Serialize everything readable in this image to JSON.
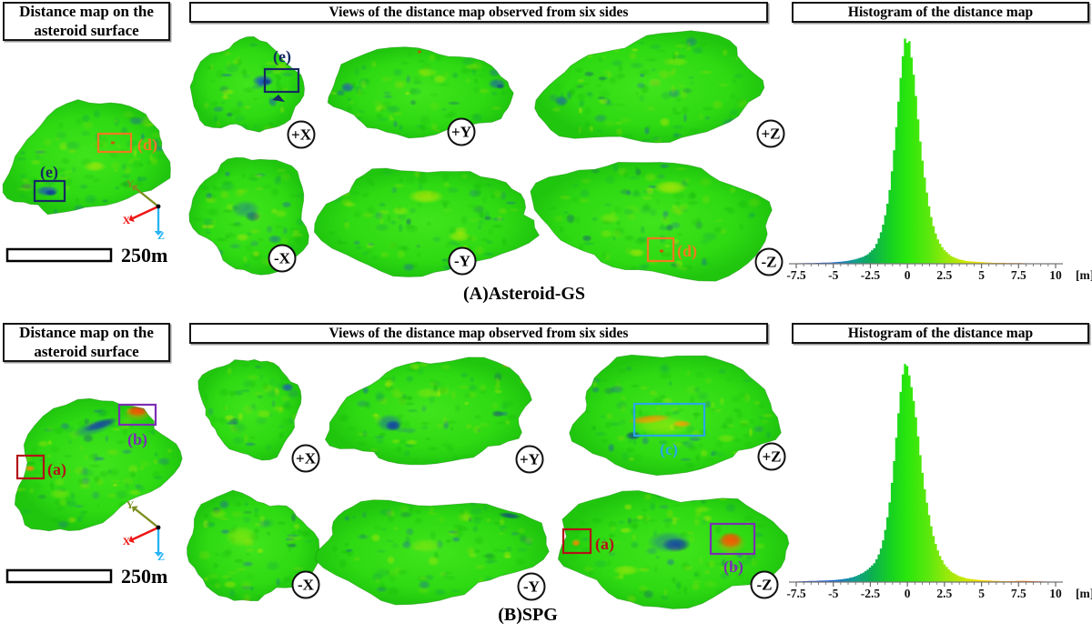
{
  "figure": {
    "panels": [
      {
        "id": "A",
        "caption": "(A)Asteroid-GS",
        "headers": {
          "left": "Distance map on the asteroid surface",
          "center": "Views of the distance map observed from six sides",
          "right": "Histogram of the distance map"
        },
        "scale_bar_label": "250m",
        "axes_triad": [
          {
            "label": "Y",
            "color": "#7d8d21"
          },
          {
            "label": "X",
            "color": "#ee1412"
          },
          {
            "label": "Z",
            "color": "#2ab4f4"
          }
        ],
        "view_labels": [
          "+X",
          "+Y",
          "+Z",
          "-X",
          "-Y",
          "-Z"
        ],
        "annotations": [
          {
            "label": "(d)",
            "color": "#f4791f",
            "target": "main"
          },
          {
            "label": "(e)",
            "color": "#152a63",
            "target": "main"
          },
          {
            "label": "(e)",
            "color": "#152a63",
            "target": "+X"
          },
          {
            "label": "(d)",
            "color": "#f4791f",
            "target": "-Z"
          }
        ]
      },
      {
        "id": "B",
        "caption": "(B)SPG",
        "headers": {
          "left": "Distance map on the asteroid surface",
          "center": "Views of the distance map observed from six sides",
          "right": "Histogram of the distance map"
        },
        "scale_bar_label": "250m",
        "axes_triad": [
          {
            "label": "Y",
            "color": "#7d8d21"
          },
          {
            "label": "X",
            "color": "#ee1412"
          },
          {
            "label": "Z",
            "color": "#2ab4f4"
          }
        ],
        "view_labels": [
          "+X",
          "+Y",
          "+Z",
          "-X",
          "-Y",
          "-Z"
        ],
        "annotations": [
          {
            "label": "(a)",
            "color": "#b31217",
            "target": "main"
          },
          {
            "label": "(b)",
            "color": "#7b2fb4",
            "target": "main"
          },
          {
            "label": "(c)",
            "color": "#2aa7ea",
            "target": "+Z"
          },
          {
            "label": "(a)",
            "color": "#b31217",
            "target": "-Z"
          },
          {
            "label": "(b)",
            "color": "#7b2fb4",
            "target": "-Z"
          }
        ]
      }
    ],
    "colormap_stops": [
      [
        -7.5,
        "#2030cc"
      ],
      [
        -5,
        "#2068d8"
      ],
      [
        -3.5,
        "#13a08c"
      ],
      [
        -2.5,
        "#0cad55"
      ],
      [
        -1,
        "#18d41e"
      ],
      [
        0,
        "#2ae70c"
      ],
      [
        1.5,
        "#5fe80d"
      ],
      [
        2.5,
        "#8fe90c"
      ],
      [
        4,
        "#cfe804"
      ],
      [
        5,
        "#f4dc00"
      ],
      [
        6.5,
        "#ffae00"
      ],
      [
        8,
        "#ff6a00"
      ],
      [
        10,
        "#ff2400"
      ]
    ],
    "surface_base_color": "#2eda12"
  },
  "chart_data": [
    {
      "type": "bar",
      "title": "Histogram of the distance map",
      "xlabel": "[m]",
      "ylabel": "",
      "xlim": [
        -7.5,
        10
      ],
      "x_ticks": [
        "-7.5",
        "-5",
        "-2.5",
        "0",
        "2.5",
        "5",
        "7.5",
        "10"
      ],
      "unit": "[m]",
      "grid": false,
      "legend": "none",
      "peak_x": 0,
      "points": [
        [
          -7.5,
          0.002
        ],
        [
          -6.5,
          0.003
        ],
        [
          -6,
          0.004
        ],
        [
          -5.5,
          0.005
        ],
        [
          -5,
          0.006
        ],
        [
          -4.5,
          0.009
        ],
        [
          -4,
          0.013
        ],
        [
          -3.5,
          0.02
        ],
        [
          -3,
          0.03
        ],
        [
          -2.7,
          0.04
        ],
        [
          -2.5,
          0.052
        ],
        [
          -2.2,
          0.07
        ],
        [
          -2,
          0.1
        ],
        [
          -1.8,
          0.135
        ],
        [
          -1.6,
          0.18
        ],
        [
          -1.4,
          0.24
        ],
        [
          -1.2,
          0.32
        ],
        [
          -1,
          0.43
        ],
        [
          -0.8,
          0.56
        ],
        [
          -0.6,
          0.71
        ],
        [
          -0.4,
          0.85
        ],
        [
          -0.25,
          0.94
        ],
        [
          -0.12,
          1.0
        ],
        [
          -0.02,
          0.96
        ],
        [
          0.08,
          1.0
        ],
        [
          0.2,
          0.94
        ],
        [
          0.35,
          0.87
        ],
        [
          0.5,
          0.79
        ],
        [
          0.7,
          0.65
        ],
        [
          0.9,
          0.52
        ],
        [
          1.1,
          0.41
        ],
        [
          1.3,
          0.32
        ],
        [
          1.5,
          0.24
        ],
        [
          1.7,
          0.18
        ],
        [
          1.9,
          0.135
        ],
        [
          2.1,
          0.1
        ],
        [
          2.3,
          0.078
        ],
        [
          2.5,
          0.06
        ],
        [
          2.8,
          0.042
        ],
        [
          3,
          0.032
        ],
        [
          3.5,
          0.019
        ],
        [
          4,
          0.012
        ],
        [
          4.5,
          0.009
        ],
        [
          5,
          0.007
        ],
        [
          5.5,
          0.005
        ],
        [
          6,
          0.004
        ],
        [
          6.5,
          0.004
        ],
        [
          7,
          0.003
        ],
        [
          7.5,
          0.003
        ],
        [
          8,
          0.002
        ],
        [
          9,
          0.002
        ],
        [
          10,
          0.001
        ]
      ]
    },
    {
      "type": "bar",
      "title": "Histogram of the distance map",
      "xlabel": "[m]",
      "ylabel": "",
      "xlim": [
        -7.5,
        10
      ],
      "x_ticks": [
        "-7.5",
        "-5",
        "-2.5",
        "0",
        "2.5",
        "5",
        "7.5",
        "10"
      ],
      "unit": "[m]",
      "grid": false,
      "legend": "none",
      "peak_x": -0.12,
      "points": [
        [
          -7.5,
          0.002
        ],
        [
          -7,
          0.004
        ],
        [
          -6.5,
          0.005
        ],
        [
          -6,
          0.006
        ],
        [
          -5.5,
          0.007
        ],
        [
          -5,
          0.009
        ],
        [
          -4.5,
          0.012
        ],
        [
          -4,
          0.017
        ],
        [
          -3.5,
          0.026
        ],
        [
          -3,
          0.042
        ],
        [
          -2.7,
          0.056
        ],
        [
          -2.5,
          0.068
        ],
        [
          -2.2,
          0.088
        ],
        [
          -2,
          0.115
        ],
        [
          -1.8,
          0.15
        ],
        [
          -1.6,
          0.2
        ],
        [
          -1.4,
          0.27
        ],
        [
          -1.2,
          0.36
        ],
        [
          -1,
          0.48
        ],
        [
          -0.8,
          0.62
        ],
        [
          -0.6,
          0.77
        ],
        [
          -0.4,
          0.9
        ],
        [
          -0.25,
          0.97
        ],
        [
          -0.12,
          1.0
        ],
        [
          0,
          0.98
        ],
        [
          0.2,
          0.92
        ],
        [
          0.4,
          0.84
        ],
        [
          0.6,
          0.74
        ],
        [
          0.8,
          0.62
        ],
        [
          1,
          0.51
        ],
        [
          1.2,
          0.41
        ],
        [
          1.4,
          0.33
        ],
        [
          1.6,
          0.26
        ],
        [
          1.8,
          0.2
        ],
        [
          2,
          0.155
        ],
        [
          2.2,
          0.12
        ],
        [
          2.5,
          0.082
        ],
        [
          2.8,
          0.058
        ],
        [
          3,
          0.045
        ],
        [
          3.5,
          0.027
        ],
        [
          4,
          0.017
        ],
        [
          4.5,
          0.012
        ],
        [
          5,
          0.009
        ],
        [
          5.5,
          0.007
        ],
        [
          6,
          0.005
        ],
        [
          6.5,
          0.004
        ],
        [
          7,
          0.004
        ],
        [
          7.5,
          0.005
        ],
        [
          8,
          0.005
        ],
        [
          8.5,
          0.004
        ],
        [
          9,
          0.003
        ],
        [
          9.5,
          0.002
        ],
        [
          10,
          0.001
        ]
      ]
    }
  ]
}
